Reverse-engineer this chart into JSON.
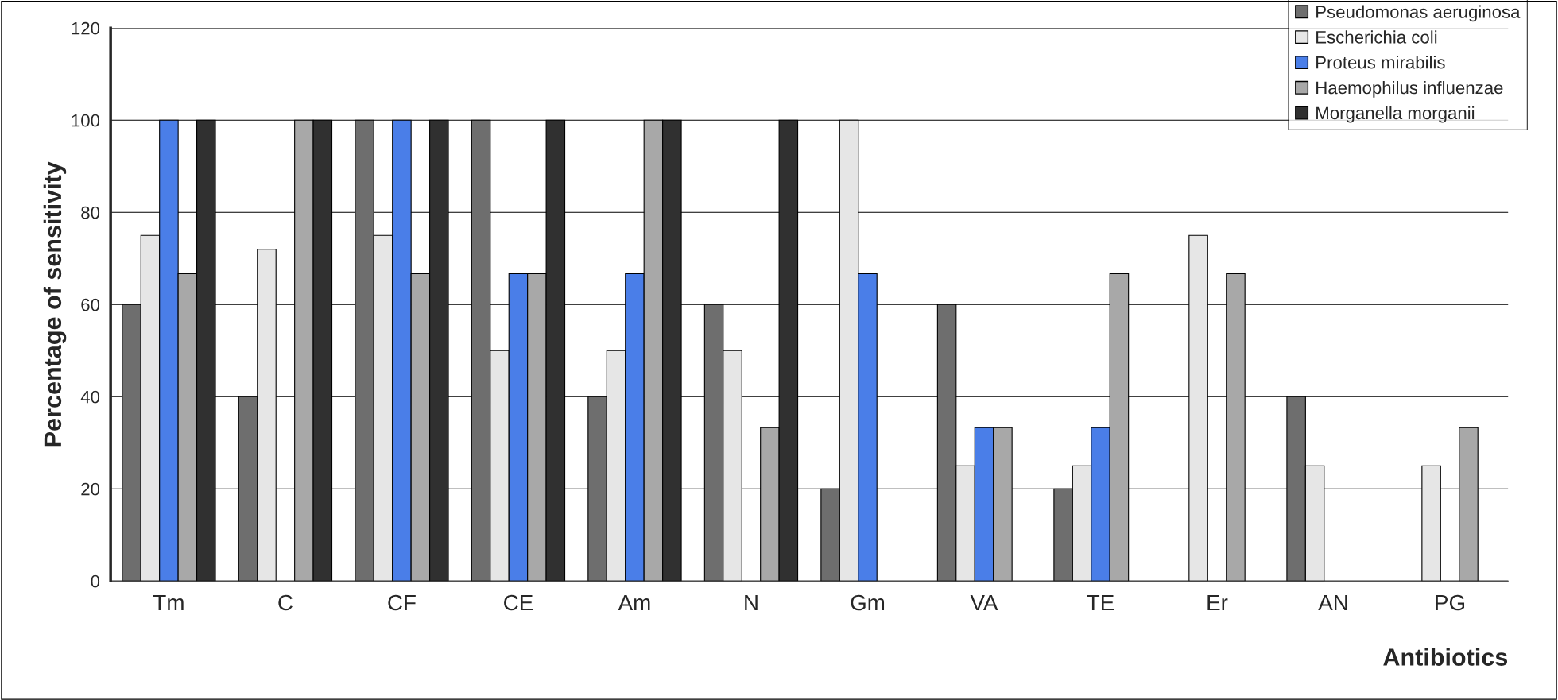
{
  "chart_data": {
    "type": "bar",
    "xlabel": "Antibiotics",
    "ylabel": "Percentage of sensitivity",
    "categories": [
      "Tm",
      "C",
      "CF",
      "CE",
      "Am",
      "N",
      "Gm",
      "VA",
      "TE",
      "Er",
      "AN",
      "PG"
    ],
    "series": [
      {
        "name": "Pseudomonas aeruginosa",
        "color": "#6e6e6e",
        "values": [
          60,
          40,
          100,
          100,
          40,
          60,
          20,
          60,
          20,
          null,
          40,
          null
        ]
      },
      {
        "name": "Escherichia coli",
        "color": "#e6e6e6",
        "values": [
          75,
          72,
          75,
          50,
          50,
          50,
          100,
          25,
          25,
          75,
          25,
          25
        ]
      },
      {
        "name": "Proteus mirabilis",
        "color": "#4a7ee8",
        "values": [
          100,
          null,
          100,
          66.7,
          66.7,
          null,
          66.7,
          33.3,
          33.3,
          null,
          null,
          null
        ]
      },
      {
        "name": "Haemophilus influenzae",
        "color": "#a8a8a8",
        "values": [
          66.7,
          100,
          66.7,
          66.7,
          100,
          33.3,
          null,
          33.3,
          66.7,
          66.7,
          null,
          33.3
        ]
      },
      {
        "name": "Morganella morganii",
        "color": "#303030",
        "values": [
          100,
          100,
          100,
          100,
          100,
          100,
          null,
          null,
          null,
          null,
          null,
          null
        ]
      }
    ],
    "ylim": [
      0,
      120
    ],
    "yticks": [
      0,
      20,
      40,
      60,
      80,
      100,
      120
    ],
    "grid": "y",
    "legend": "top right"
  }
}
